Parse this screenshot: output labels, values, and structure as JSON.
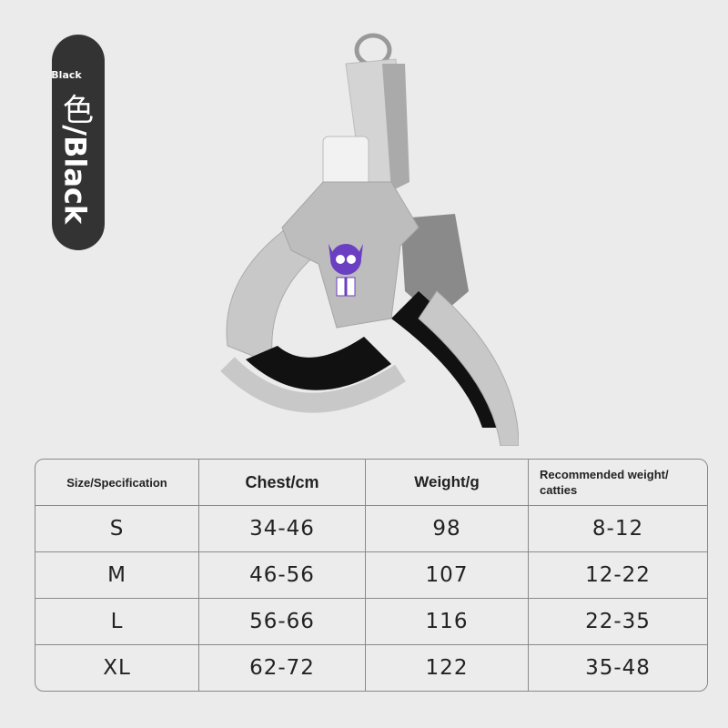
{
  "color_label": {
    "small": "Black",
    "chinese": "色",
    "main": "/Black"
  },
  "colors": {
    "background": "#ebebeb",
    "pill": "#333333",
    "logo_purple": "#6a3fc2"
  },
  "product_image": {
    "icon": "dog-harness-image",
    "logo": "purple-dog-with-glasses-logo"
  },
  "table": {
    "headers": [
      "Size/Specification",
      "Chest/cm",
      "Weight/g",
      "Recommended weight/ catties"
    ],
    "rows": [
      [
        "S",
        "34-46",
        "98",
        "8-12"
      ],
      [
        "M",
        "46-56",
        "107",
        "12-22"
      ],
      [
        "L",
        "56-66",
        "116",
        "22-35"
      ],
      [
        "XL",
        "62-72",
        "122",
        "35-48"
      ]
    ]
  }
}
